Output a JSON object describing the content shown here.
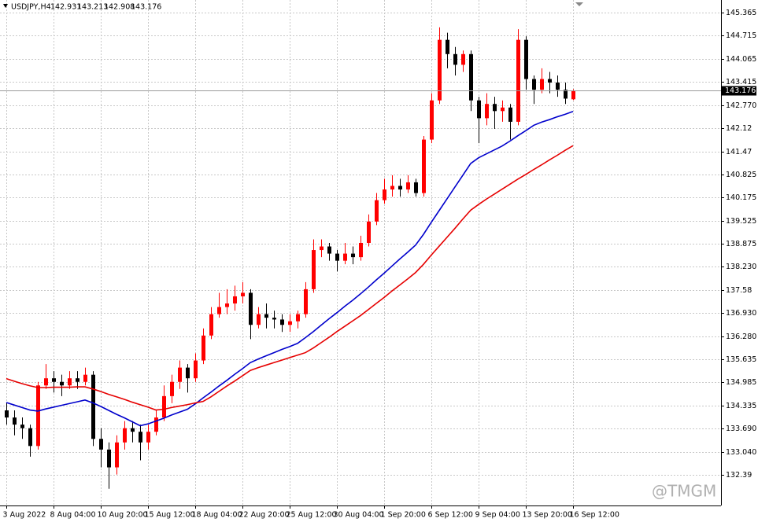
{
  "chart_data": {
    "type": "candlestick",
    "title": "USDJPY,H4",
    "header_ohlc": [
      142.931,
      143.213,
      142.908,
      143.176
    ],
    "watermark": "@TMGM",
    "categories": [
      "3 Aug 2022",
      null,
      null,
      null,
      null,
      null,
      "8 Aug 04:00",
      null,
      null,
      null,
      null,
      null,
      "10 Aug 20:00",
      null,
      null,
      null,
      null,
      null,
      "15 Aug 12:00",
      null,
      null,
      null,
      null,
      null,
      "18 Aug 04:00",
      null,
      null,
      null,
      null,
      null,
      "22 Aug 20:00",
      null,
      null,
      null,
      null,
      null,
      "25 Aug 12:00",
      null,
      null,
      null,
      null,
      null,
      "30 Aug 04:00",
      null,
      null,
      null,
      null,
      null,
      "1 Sep 20:00",
      null,
      null,
      null,
      null,
      null,
      "6 Sep 12:00",
      null,
      null,
      null,
      null,
      null,
      "9 Sep 04:00",
      null,
      null,
      null,
      null,
      null,
      "13 Sep 20:00",
      null,
      null,
      null,
      null,
      null,
      "16 Sep 12:00"
    ],
    "open": [
      134.2,
      134.0,
      133.8,
      133.7,
      133.2,
      134.9,
      135.1,
      135.0,
      134.9,
      135.1,
      135.0,
      135.2,
      133.4,
      133.1,
      132.6,
      133.3,
      133.7,
      133.6,
      133.3,
      133.6,
      134.0,
      134.6,
      135.0,
      135.4,
      135.1,
      135.6,
      136.3,
      136.9,
      137.1,
      137.2,
      137.4,
      137.5,
      136.6,
      136.9,
      136.8,
      136.75,
      136.6,
      136.7,
      136.9,
      137.6,
      138.7,
      138.8,
      138.6,
      138.4,
      138.6,
      138.5,
      138.9,
      139.5,
      140.1,
      140.4,
      140.5,
      140.4,
      140.6,
      140.3,
      141.8,
      142.9,
      144.6,
      144.2,
      143.9,
      144.2,
      142.9,
      142.4,
      142.8,
      142.6,
      142.7,
      142.3,
      144.6,
      143.5,
      143.2,
      143.5,
      143.4,
      143.2,
      142.931
    ],
    "high": [
      134.4,
      134.2,
      134.0,
      133.8,
      135.0,
      135.5,
      135.3,
      135.2,
      135.3,
      135.3,
      135.4,
      135.3,
      133.7,
      133.3,
      133.5,
      133.9,
      133.9,
      133.8,
      133.8,
      134.2,
      134.9,
      135.2,
      135.6,
      135.5,
      135.8,
      136.5,
      137.1,
      137.5,
      137.6,
      137.7,
      137.8,
      137.6,
      137.1,
      137.2,
      137.0,
      136.9,
      136.9,
      137.0,
      137.8,
      139.0,
      139.0,
      138.9,
      138.7,
      138.9,
      138.8,
      139.1,
      139.7,
      140.3,
      140.7,
      140.8,
      140.7,
      140.8,
      140.7,
      141.9,
      143.1,
      144.95,
      144.8,
      144.4,
      144.3,
      144.3,
      143.0,
      143.1,
      143.0,
      142.9,
      142.8,
      144.9,
      144.7,
      143.6,
      143.8,
      143.7,
      143.6,
      143.4,
      143.213
    ],
    "low": [
      133.8,
      133.5,
      133.4,
      132.9,
      133.1,
      134.8,
      134.7,
      134.6,
      134.8,
      134.8,
      134.9,
      133.2,
      132.6,
      132.0,
      132.4,
      133.1,
      133.3,
      132.8,
      133.1,
      133.5,
      133.9,
      134.4,
      134.8,
      134.7,
      135.0,
      135.5,
      136.2,
      136.8,
      136.9,
      137.0,
      137.2,
      136.2,
      136.5,
      136.5,
      136.5,
      136.4,
      136.4,
      136.5,
      136.8,
      137.5,
      138.5,
      138.4,
      138.1,
      138.3,
      138.3,
      138.4,
      138.8,
      139.4,
      140.0,
      140.2,
      140.2,
      140.3,
      140.2,
      140.2,
      141.7,
      142.8,
      143.8,
      143.6,
      143.7,
      142.6,
      141.7,
      142.2,
      142.1,
      142.3,
      141.8,
      142.2,
      143.2,
      142.8,
      143.1,
      143.1,
      143.0,
      142.8,
      142.908
    ],
    "close": [
      134.0,
      133.8,
      133.7,
      133.2,
      134.9,
      135.1,
      135.0,
      134.9,
      135.1,
      135.0,
      135.2,
      133.4,
      133.1,
      132.6,
      133.3,
      133.7,
      133.6,
      133.3,
      133.6,
      134.0,
      134.6,
      135.0,
      135.4,
      135.1,
      135.6,
      136.3,
      136.9,
      137.1,
      137.2,
      137.4,
      137.5,
      136.6,
      136.9,
      136.8,
      136.75,
      136.6,
      136.7,
      136.9,
      137.6,
      138.7,
      138.8,
      138.6,
      138.4,
      138.6,
      138.5,
      138.9,
      139.5,
      140.1,
      140.4,
      140.5,
      140.4,
      140.6,
      140.3,
      141.8,
      142.9,
      144.6,
      144.2,
      143.9,
      144.2,
      142.9,
      142.4,
      142.8,
      142.6,
      142.7,
      142.3,
      144.6,
      143.5,
      143.2,
      143.5,
      143.4,
      143.2,
      142.95,
      143.176
    ],
    "up_color": "#ff0000",
    "down_color": "#000000",
    "series": [
      {
        "color": "#0000cc",
        "values": [
          134.42,
          134.35,
          134.28,
          134.21,
          134.18,
          134.24,
          134.29,
          134.34,
          134.39,
          134.44,
          134.49,
          134.41,
          134.31,
          134.2,
          134.09,
          133.99,
          133.88,
          133.77,
          133.82,
          133.9,
          133.98,
          134.07,
          134.15,
          134.23,
          134.38,
          134.55,
          134.71,
          134.88,
          135.04,
          135.21,
          135.37,
          135.54,
          135.64,
          135.73,
          135.82,
          135.91,
          135.99,
          136.08,
          136.24,
          136.41,
          136.59,
          136.77,
          136.94,
          137.12,
          137.29,
          137.47,
          137.66,
          137.86,
          138.05,
          138.25,
          138.45,
          138.64,
          138.84,
          139.14,
          139.48,
          139.81,
          140.14,
          140.47,
          140.8,
          141.13,
          141.29,
          141.4,
          141.51,
          141.62,
          141.76,
          141.91,
          142.05,
          142.2,
          142.29,
          142.36,
          142.44,
          142.51,
          142.59
        ]
      },
      {
        "color": "#e60000",
        "values": [
          135.09,
          135.02,
          134.95,
          134.89,
          134.84,
          134.84,
          134.85,
          134.85,
          134.85,
          134.86,
          134.86,
          134.8,
          134.73,
          134.65,
          134.58,
          134.51,
          134.43,
          134.36,
          134.29,
          134.21,
          134.23,
          134.28,
          134.32,
          134.36,
          134.41,
          134.45,
          134.58,
          134.73,
          134.88,
          135.02,
          135.17,
          135.32,
          135.4,
          135.47,
          135.54,
          135.61,
          135.68,
          135.75,
          135.82,
          135.95,
          136.1,
          136.25,
          136.41,
          136.56,
          136.71,
          136.86,
          137.03,
          137.2,
          137.37,
          137.55,
          137.72,
          137.89,
          138.07,
          138.3,
          138.56,
          138.81,
          139.06,
          139.31,
          139.57,
          139.82,
          139.98,
          140.13,
          140.27,
          140.41,
          140.55,
          140.69,
          140.82,
          140.96,
          141.09,
          141.23,
          141.36,
          141.5,
          141.63
        ]
      }
    ],
    "ylim": [
      131.53,
      145.718
    ],
    "yticks": [
      145.365,
      144.715,
      144.065,
      143.415,
      {
        "value": 142.77,
        "label": "142.770"
      },
      142.12,
      141.47,
      140.825,
      140.175,
      139.525,
      138.875,
      {
        "value": 138.23,
        "label": "138.230"
      },
      137.58,
      {
        "value": 136.93,
        "label": "136.930"
      },
      {
        "value": 136.28,
        "label": "136.280"
      },
      135.635,
      134.985,
      134.335,
      {
        "value": 133.69,
        "label": "133.690"
      },
      {
        "value": 133.04,
        "label": "133.040"
      },
      132.39
    ],
    "grid": true
  }
}
